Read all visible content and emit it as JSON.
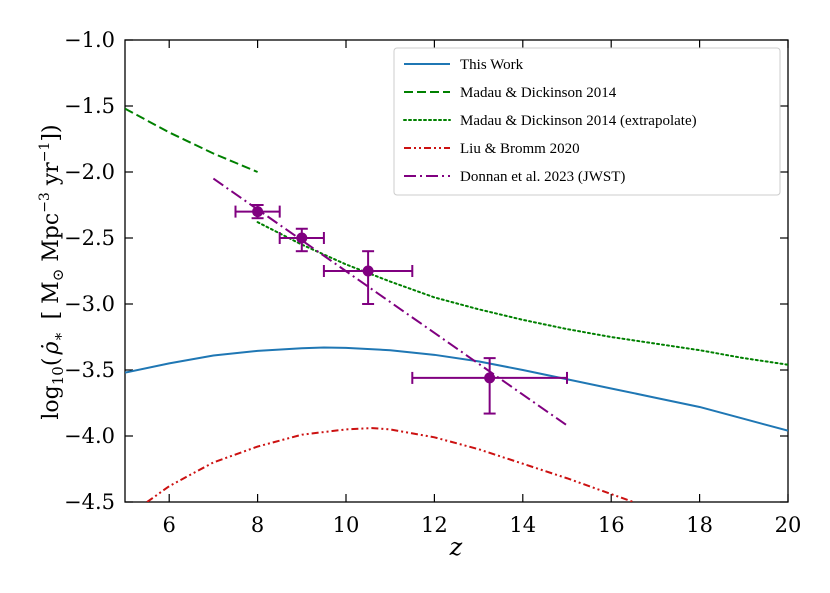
{
  "chart_data": {
    "type": "line",
    "title": "",
    "xlabel": "z",
    "ylabel": "log10( ρ̇* [ M⊙ Mpc^-3 yr^-1 ])",
    "ylabel_parts": {
      "log": "log",
      "sub": "10",
      "paren_open": "(",
      "rho": "ρ̇",
      "star": "∗",
      "unit_open": "[ M",
      "sun": "⊙",
      "mpc": " Mpc",
      "mpc_exp": "−3",
      "yr": " yr",
      "yr_exp": "−1",
      "unit_close": "])"
    },
    "xlim": [
      5,
      20
    ],
    "ylim": [
      -4.5,
      -1.0
    ],
    "xticks": [
      6,
      8,
      10,
      12,
      14,
      16,
      18,
      20
    ],
    "yticks": [
      -4.5,
      -4.0,
      -3.5,
      -3.0,
      -2.5,
      -2.0,
      -1.5,
      -1.0
    ],
    "ytick_labels": [
      "−4.5",
      "−4.0",
      "−3.5",
      "−3.0",
      "−2.5",
      "−2.0",
      "−1.5",
      "−1.0"
    ],
    "legend_position": "top-right",
    "series": [
      {
        "name": "This Work",
        "color": "#1f77b4",
        "style": "solid",
        "x": [
          5,
          6,
          7,
          8,
          9,
          9.5,
          10,
          11,
          12,
          13,
          14,
          15,
          16,
          17,
          18,
          19,
          20
        ],
        "y": [
          -3.52,
          -3.45,
          -3.39,
          -3.355,
          -3.335,
          -3.33,
          -3.332,
          -3.35,
          -3.385,
          -3.435,
          -3.5,
          -3.57,
          -3.64,
          -3.71,
          -3.78,
          -3.87,
          -3.96
        ]
      },
      {
        "name": "Madau & Dickinson 2014",
        "color": "#008000",
        "style": "dashed",
        "x": [
          5,
          5.5,
          6,
          6.5,
          7,
          7.5,
          8
        ],
        "y": [
          -1.52,
          -1.61,
          -1.7,
          -1.78,
          -1.86,
          -1.93,
          -2.0
        ]
      },
      {
        "name": "Madau & Dickinson 2014 (extrapolate)",
        "color": "#008000",
        "style": "dotted",
        "x": [
          8,
          9,
          10,
          11,
          12,
          13,
          14,
          15,
          16,
          17,
          18,
          19,
          20
        ],
        "y": [
          -2.38,
          -2.55,
          -2.7,
          -2.83,
          -2.95,
          -3.04,
          -3.12,
          -3.19,
          -3.25,
          -3.3,
          -3.35,
          -3.41,
          -3.46
        ]
      },
      {
        "name": "Liu & Bromm 2020",
        "color": "#cc1111",
        "style": "dashdotdot",
        "x": [
          5.5,
          6,
          7,
          8,
          9,
          10,
          10.6,
          11,
          12,
          13,
          14,
          15,
          16,
          16.5
        ],
        "y": [
          -4.5,
          -4.38,
          -4.2,
          -4.08,
          -3.99,
          -3.95,
          -3.94,
          -3.95,
          -4.01,
          -4.1,
          -4.21,
          -4.32,
          -4.44,
          -4.5
        ]
      },
      {
        "name": "Donnan et al. 2023 (JWST)",
        "color": "#800080",
        "style": "dashdot",
        "x": [
          7,
          15
        ],
        "y": [
          -2.05,
          -3.92
        ]
      }
    ],
    "errorbars": {
      "name": "Donnan et al. 2023 (JWST) data",
      "color": "#800080",
      "points": [
        {
          "x": 8.0,
          "y": -2.3,
          "xerr": [
            0.5,
            0.5
          ],
          "yerr": [
            0.05,
            0.05
          ]
        },
        {
          "x": 9.0,
          "y": -2.5,
          "xerr": [
            0.5,
            0.5
          ],
          "yerr": [
            0.1,
            0.07
          ]
        },
        {
          "x": 10.5,
          "y": -2.75,
          "xerr": [
            1.0,
            1.0
          ],
          "yerr": [
            0.25,
            0.15
          ]
        },
        {
          "x": 13.25,
          "y": -3.56,
          "xerr": [
            1.75,
            1.75
          ],
          "yerr": [
            0.27,
            0.15
          ]
        }
      ]
    }
  }
}
